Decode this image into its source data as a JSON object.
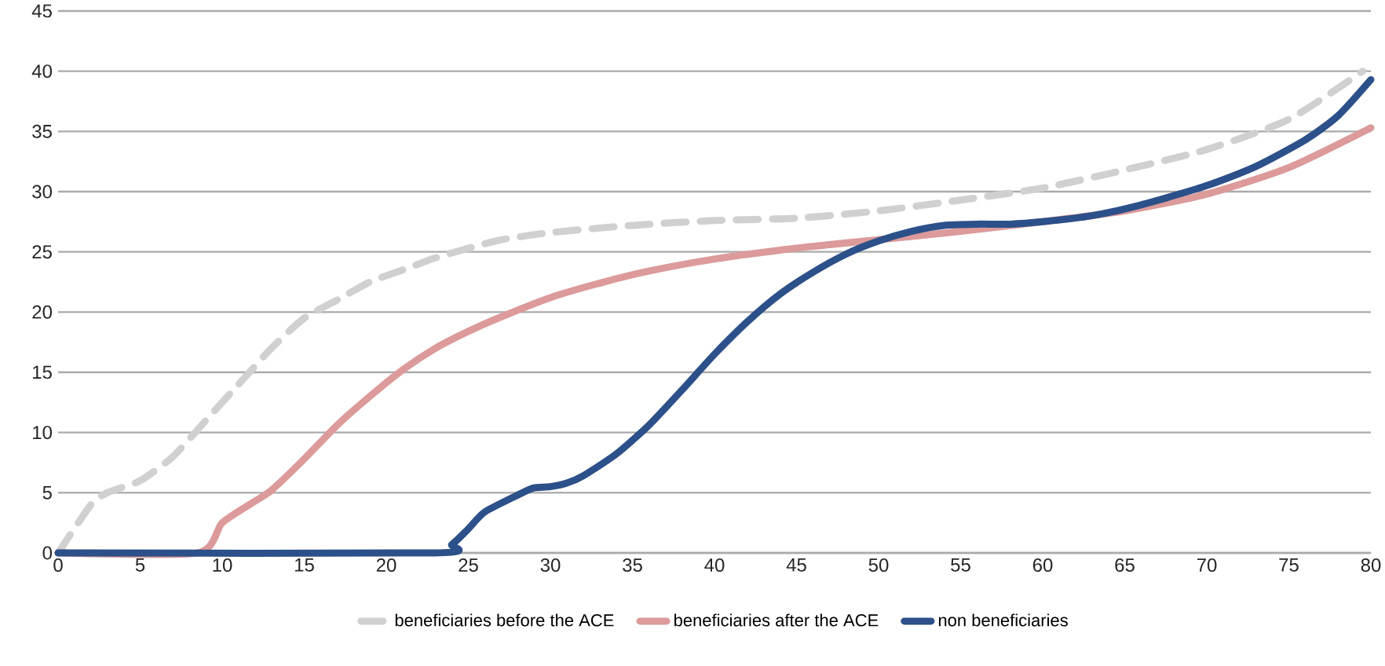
{
  "chart_data": {
    "type": "line",
    "xlim": [
      0,
      80
    ],
    "ylim": [
      0,
      45
    ],
    "xticks": [
      0,
      5,
      10,
      15,
      20,
      25,
      30,
      35,
      40,
      45,
      50,
      55,
      60,
      65,
      70,
      75,
      80
    ],
    "yticks": [
      0,
      5,
      10,
      15,
      20,
      25,
      30,
      35,
      40,
      45
    ],
    "grid": "y",
    "legend": "bottom",
    "marker": "none",
    "series": [
      {
        "name": "beneficiaries  before the ACE",
        "color": "#d0d0d0",
        "line_style": "dashed",
        "x": [
          0,
          2,
          3,
          5,
          7,
          9,
          11,
          13,
          15,
          17,
          19,
          21,
          23,
          25,
          27,
          30,
          35,
          40,
          45,
          50,
          55,
          60,
          65,
          70,
          75,
          79.5
        ],
        "values": [
          0,
          4,
          5,
          6,
          8,
          11,
          14,
          17,
          19.5,
          21,
          22.5,
          23.5,
          24.5,
          25.3,
          26,
          26.6,
          27.2,
          27.6,
          27.8,
          28.4,
          29.3,
          30.3,
          31.8,
          33.5,
          36,
          40
        ]
      },
      {
        "name": "beneficiaries  after the ACE",
        "color": "#dc9a9a",
        "line_style": "solid",
        "x": [
          0,
          8.5,
          10,
          12,
          13,
          15,
          17,
          19,
          21,
          23,
          25,
          27,
          30,
          33,
          36,
          40,
          45,
          50,
          55,
          60,
          65,
          70,
          75,
          80
        ],
        "values": [
          0,
          0,
          2.5,
          4.3,
          5.2,
          7.8,
          10.6,
          13,
          15.2,
          17,
          18.4,
          19.6,
          21.2,
          22.4,
          23.4,
          24.4,
          25.3,
          26,
          26.7,
          27.5,
          28.4,
          29.8,
          32,
          35.3
        ]
      },
      {
        "name": "non beneficiaries",
        "color": "#2c5089",
        "line_style": "solid",
        "x": [
          0,
          23,
          24,
          25,
          26,
          28,
          29,
          30,
          31,
          32,
          34,
          36,
          38,
          40,
          42,
          44,
          46,
          48,
          50,
          52,
          54,
          56,
          58,
          60,
          63,
          66,
          70,
          73,
          76,
          78,
          80
        ],
        "values": [
          0,
          0,
          0.7,
          2,
          3.4,
          4.8,
          5.4,
          5.5,
          5.8,
          6.4,
          8.2,
          10.6,
          13.5,
          16.5,
          19.2,
          21.5,
          23.3,
          24.8,
          25.9,
          26.7,
          27.2,
          27.3,
          27.3,
          27.5,
          28,
          28.9,
          30.5,
          32.1,
          34.3,
          36.3,
          39.3
        ]
      }
    ]
  }
}
